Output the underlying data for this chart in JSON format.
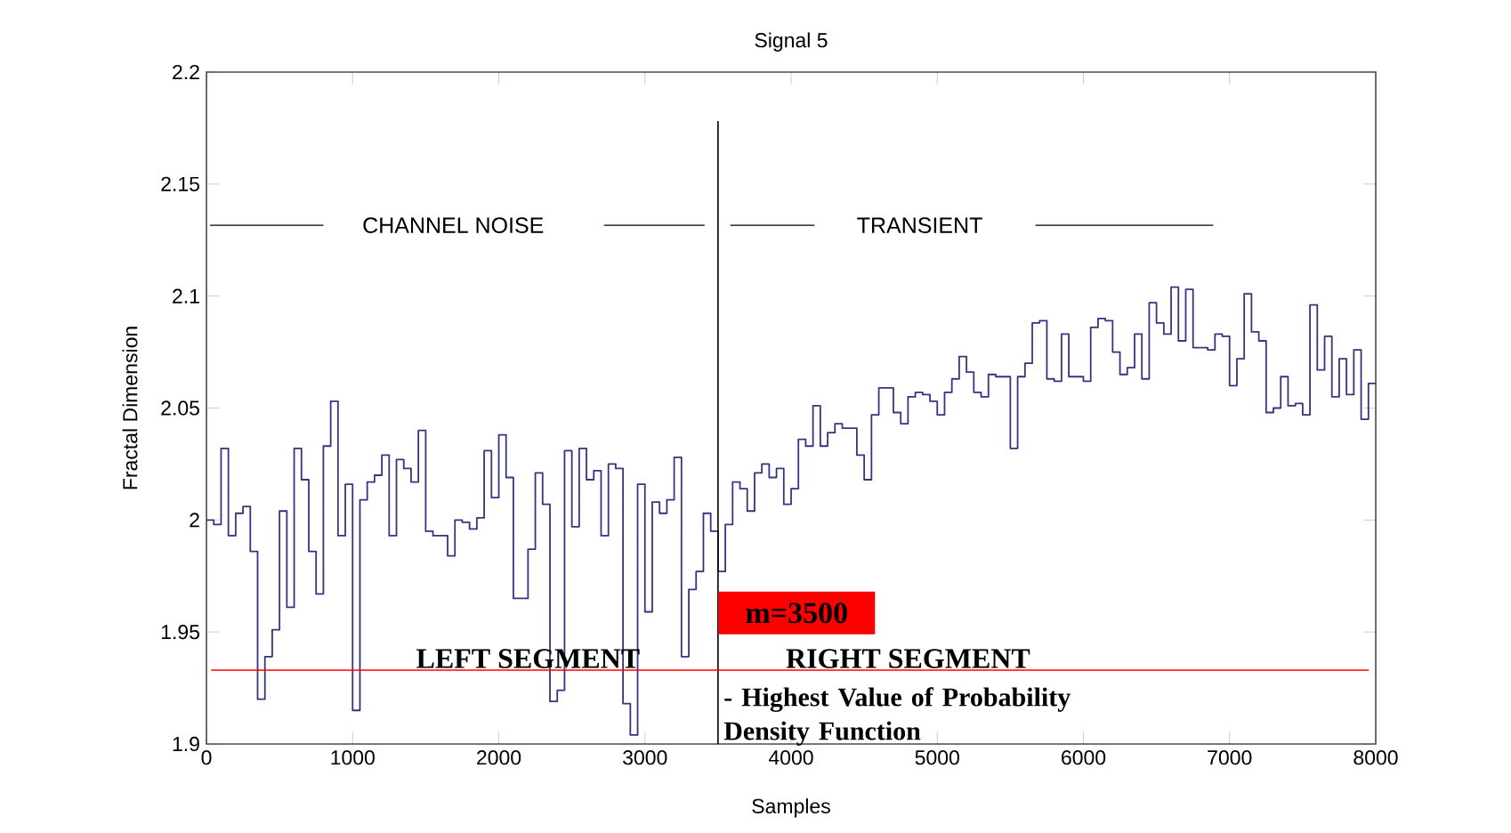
{
  "chart_data": {
    "type": "step",
    "title": "Signal 5",
    "xlabel": "Samples",
    "ylabel": "Fractal Dimension",
    "color": "#35357f",
    "x": [
      0,
      50,
      100,
      150,
      200,
      250,
      300,
      350,
      400,
      450,
      500,
      550,
      600,
      650,
      700,
      750,
      800,
      850,
      900,
      950,
      1000,
      1050,
      1100,
      1150,
      1200,
      1250,
      1300,
      1350,
      1400,
      1450,
      1500,
      1550,
      1600,
      1650,
      1700,
      1750,
      1800,
      1850,
      1900,
      1950,
      2000,
      2050,
      2100,
      2150,
      2200,
      2250,
      2300,
      2350,
      2400,
      2450,
      2500,
      2550,
      2600,
      2650,
      2700,
      2750,
      2800,
      2850,
      2900,
      2950,
      3000,
      3050,
      3100,
      3150,
      3200,
      3250,
      3300,
      3350,
      3400,
      3450,
      3500,
      3550,
      3600,
      3650,
      3700,
      3750,
      3800,
      3850,
      3900,
      3950,
      4000,
      4050,
      4100,
      4150,
      4200,
      4250,
      4300,
      4350,
      4400,
      4450,
      4500,
      4550,
      4600,
      4650,
      4700,
      4750,
      4800,
      4850,
      4900,
      4950,
      5000,
      5050,
      5100,
      5150,
      5200,
      5250,
      5300,
      5350,
      5400,
      5450,
      5500,
      5550,
      5600,
      5650,
      5700,
      5750,
      5800,
      5850,
      5900,
      5950,
      6000,
      6050,
      6100,
      6150,
      6200,
      6250,
      6300,
      6350,
      6400,
      6450,
      6500,
      6550,
      6600,
      6650,
      6700,
      6750,
      6800,
      6850,
      6900,
      6950,
      7000,
      7050,
      7100,
      7150,
      7200,
      7250,
      7300,
      7350,
      7400,
      7450,
      7500,
      7550,
      7600,
      7650,
      7700,
      7750,
      7800,
      7850,
      7900,
      7950,
      8000
    ],
    "values": [
      2.0,
      1.998,
      2.032,
      1.993,
      2.003,
      2.006,
      1.986,
      1.92,
      1.939,
      1.951,
      2.004,
      1.961,
      2.032,
      2.018,
      1.986,
      1.967,
      2.033,
      2.053,
      1.993,
      2.016,
      1.915,
      2.009,
      2.017,
      2.02,
      2.029,
      1.993,
      2.027,
      2.023,
      2.017,
      2.04,
      1.995,
      1.993,
      1.993,
      1.984,
      2.0,
      1.999,
      1.996,
      2.001,
      2.031,
      2.01,
      2.038,
      2.019,
      1.965,
      1.965,
      1.987,
      2.021,
      2.007,
      1.919,
      1.924,
      2.031,
      1.997,
      2.032,
      2.018,
      2.022,
      1.993,
      2.025,
      2.023,
      1.918,
      1.904,
      2.016,
      1.959,
      2.008,
      2.003,
      2.009,
      2.028,
      1.939,
      1.969,
      1.977,
      2.003,
      1.995,
      1.977,
      1.998,
      2.017,
      2.014,
      2.004,
      2.021,
      2.025,
      2.019,
      2.023,
      2.007,
      2.014,
      2.036,
      2.033,
      2.051,
      2.033,
      2.039,
      2.043,
      2.041,
      2.041,
      2.029,
      2.018,
      2.047,
      2.059,
      2.059,
      2.048,
      2.043,
      2.055,
      2.057,
      2.056,
      2.053,
      2.047,
      2.057,
      2.063,
      2.073,
      2.066,
      2.057,
      2.055,
      2.065,
      2.064,
      2.064,
      2.032,
      2.064,
      2.07,
      2.088,
      2.089,
      2.063,
      2.062,
      2.083,
      2.064,
      2.064,
      2.062,
      2.086,
      2.09,
      2.089,
      2.075,
      2.065,
      2.068,
      2.083,
      2.063,
      2.097,
      2.088,
      2.083,
      2.104,
      2.08,
      2.103,
      2.077,
      2.077,
      2.076,
      2.083,
      2.082,
      2.06,
      2.072,
      2.101,
      2.084,
      2.08,
      2.048,
      2.05,
      2.064,
      2.051,
      2.052,
      2.047,
      2.096,
      2.067,
      2.082,
      2.055,
      2.072,
      2.056,
      2.076,
      2.045,
      2.061,
      2.061
    ],
    "xlim": [
      0,
      8000
    ],
    "ylim": [
      1.9,
      2.2
    ],
    "xticks": [
      0,
      1000,
      2000,
      3000,
      4000,
      5000,
      6000,
      7000,
      8000
    ],
    "yticks": [
      1.9,
      1.95,
      2,
      2.05,
      2.1,
      2.15,
      2.2
    ],
    "ref_lines": [
      {
        "axis": "x",
        "value": 3500,
        "label": "m=3500",
        "color": "#000000"
      },
      {
        "axis": "y",
        "value": 1.933,
        "label": "- Highest Value of Probability Density Function",
        "color": "#ff0000"
      }
    ],
    "annotations": [
      "CHANNEL NOISE",
      "TRANSIENT",
      "LEFT SEGMENT",
      "RIGHT SEGMENT"
    ],
    "grid": false,
    "legend": false
  }
}
